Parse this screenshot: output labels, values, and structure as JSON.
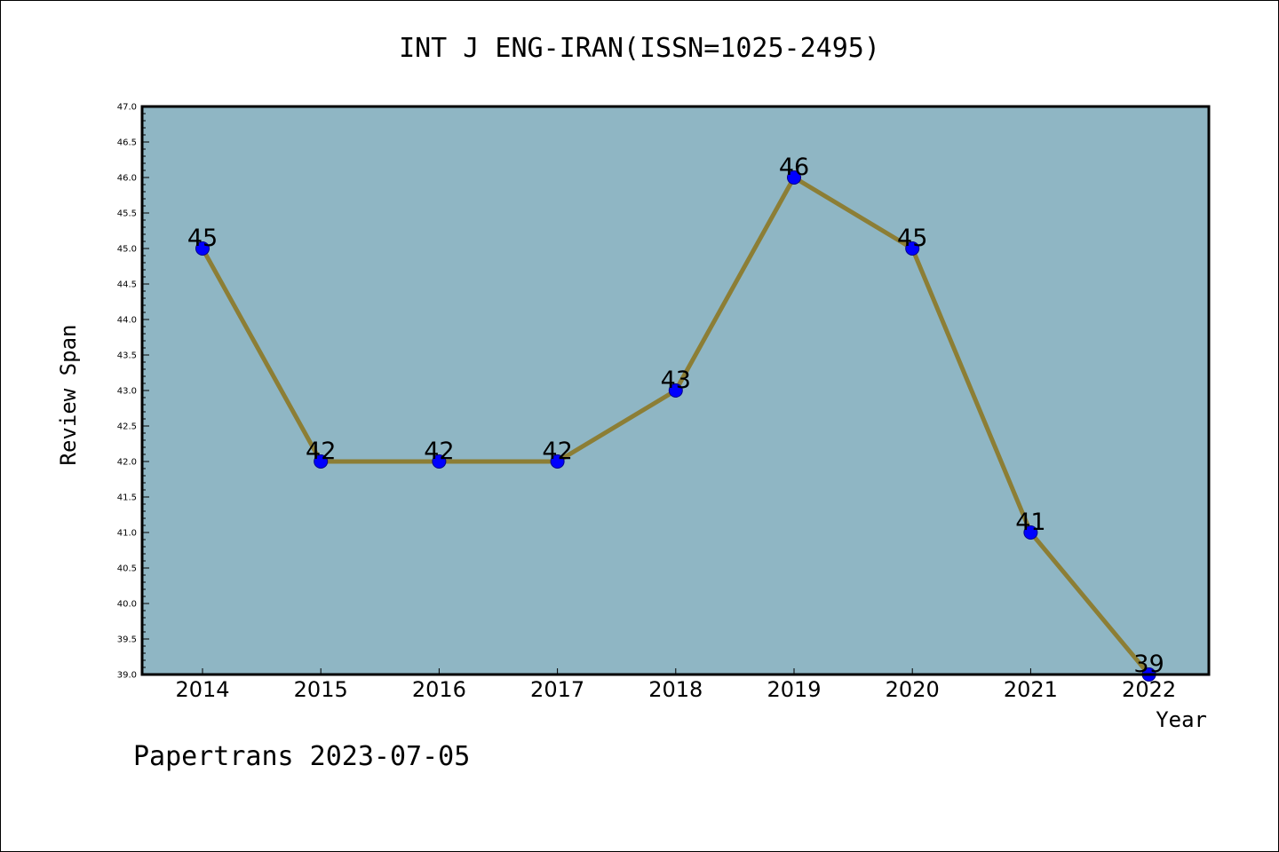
{
  "footer": {
    "text": "Papertrans 2023-07-05"
  },
  "colors": {
    "plot_background": "#8fb6c4",
    "line": "#8c7e35",
    "marker": "#0000ff"
  },
  "chart_data": {
    "type": "line",
    "title": "INT J ENG-IRAN(ISSN=1025-2495)",
    "xlabel": "Year",
    "ylabel": "Review Span",
    "categories": [
      "2014",
      "2015",
      "2016",
      "2017",
      "2018",
      "2019",
      "2020",
      "2021",
      "2022"
    ],
    "series": [
      {
        "values": [
          45,
          42,
          42,
          42,
          43,
          46,
          45,
          41,
          39
        ]
      }
    ],
    "data_labels": [
      "45",
      "42",
      "42",
      "42",
      "43",
      "46",
      "45",
      "41",
      "39"
    ],
    "ylim": [
      39.0,
      47.0
    ],
    "y_ticks": [
      "39.0",
      "39.5",
      "40.0",
      "40.5",
      "41.0",
      "41.5",
      "42.0",
      "42.5",
      "43.0",
      "43.5",
      "44.0",
      "44.5",
      "45.0",
      "45.5",
      "46.0",
      "46.5",
      "47.0"
    ],
    "grid": false,
    "legend": "none"
  }
}
